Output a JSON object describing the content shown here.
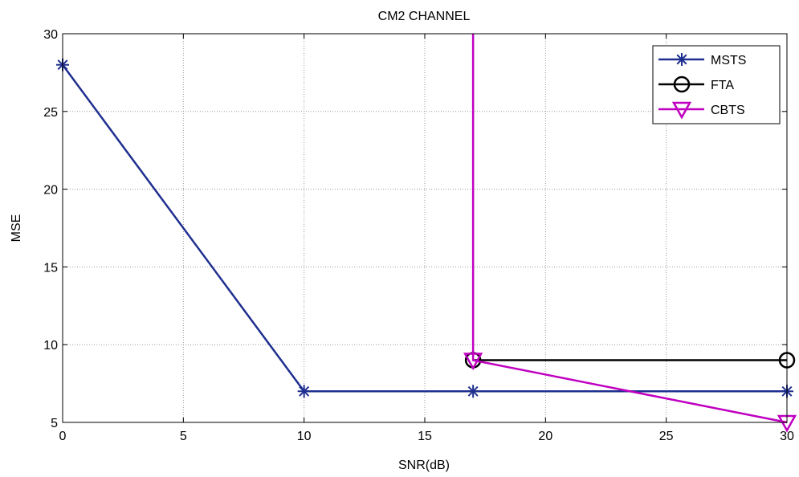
{
  "chart_data": {
    "type": "line",
    "title": "CM2 CHANNEL",
    "xlabel": "SNR(dB)",
    "ylabel": "MSE",
    "xlim": [
      0,
      30
    ],
    "ylim": [
      5,
      30
    ],
    "xticks": [
      "0",
      "5",
      "10",
      "15",
      "20",
      "25",
      "30"
    ],
    "yticks": [
      "5",
      "10",
      "15",
      "20",
      "25",
      "30"
    ],
    "grid": true,
    "legend_position": "top-right",
    "series": [
      {
        "name": "MSTS",
        "color": "#1f2f8f",
        "marker": "asterisk",
        "x": [
          0,
          10,
          17,
          30
        ],
        "y": [
          28,
          7,
          7,
          7
        ]
      },
      {
        "name": "FTA",
        "color": "#000000",
        "marker": "circle",
        "x": [
          17,
          30
        ],
        "y": [
          9,
          9
        ]
      },
      {
        "name": "CBTS",
        "color": "#c000c0",
        "marker": "triangle-down",
        "x": [
          17,
          17,
          30
        ],
        "y": [
          30,
          9,
          5
        ],
        "marked_points": [
          1,
          2
        ]
      }
    ]
  }
}
